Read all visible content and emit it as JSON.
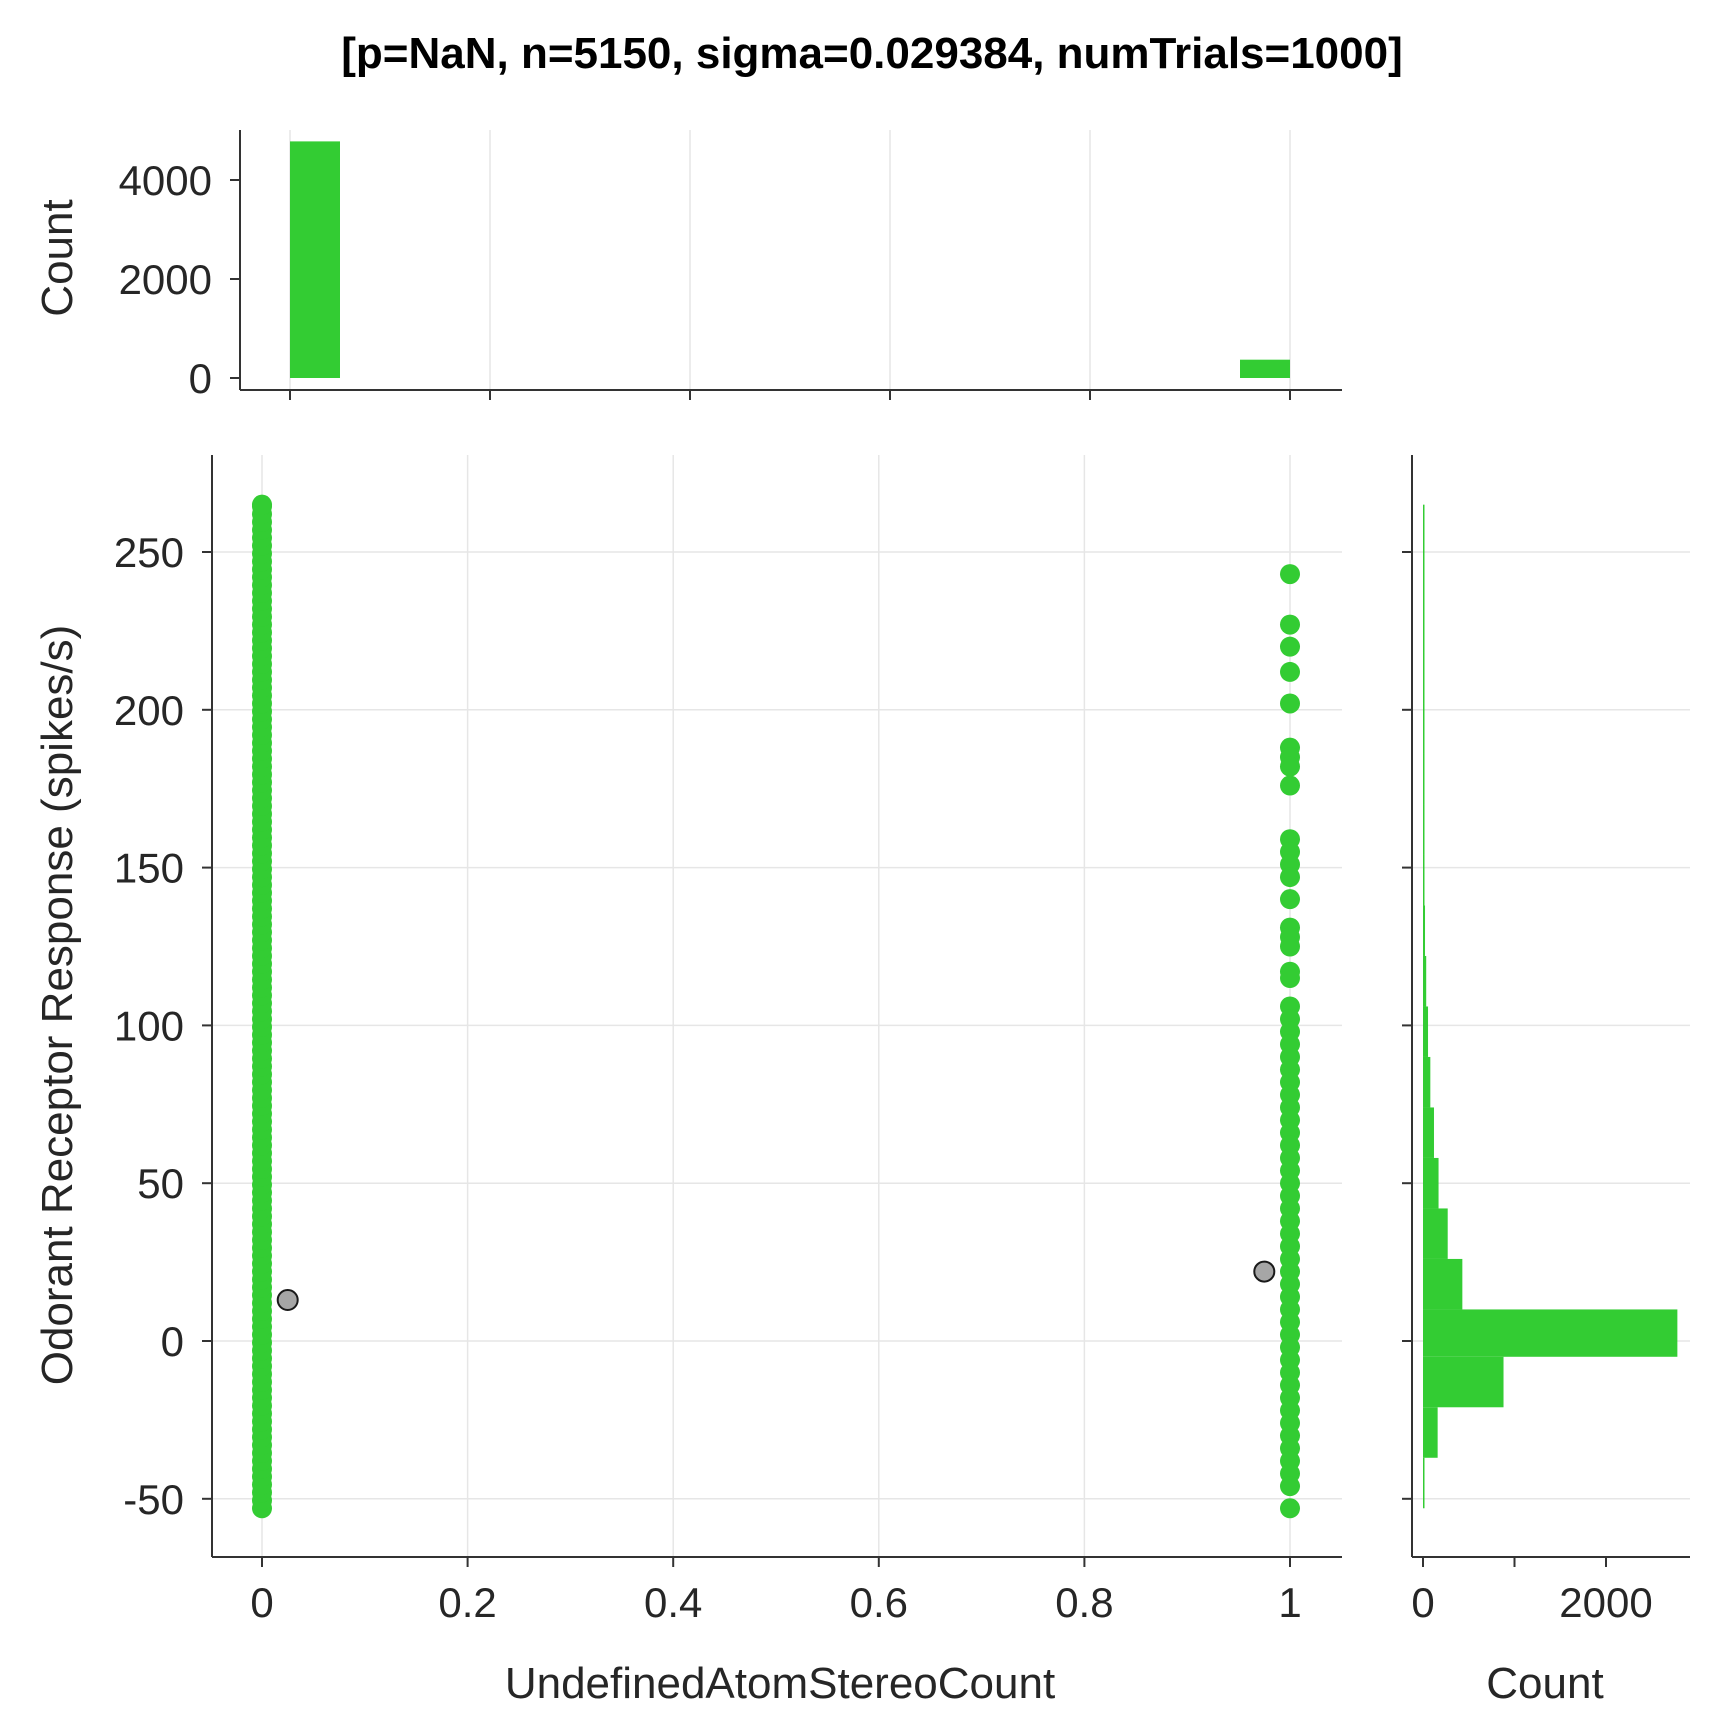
{
  "chart_data": {
    "type": "scatter",
    "title": "[p=NaN, n=5150, sigma=0.029384, numTrials=1000]",
    "colors": {
      "points": "#33cc33",
      "mean_marker": "#a6a6a6",
      "mean_marker_edge": "#1a1a1a",
      "bars": "#33cc33"
    },
    "scatter": {
      "xlabel": "UndefinedAtomStereoCount",
      "ylabel": "Odorant Receptor Response (spikes/s)",
      "xlim": [
        -0.05,
        1.05
      ],
      "ylim": [
        -68,
        280
      ],
      "xticks": [
        0,
        0.2,
        0.4,
        0.6,
        0.8,
        1
      ],
      "xtick_labels": [
        "0",
        "0.2",
        "0.4",
        "0.6",
        "0.8",
        "1"
      ],
      "yticks": [
        -50,
        0,
        50,
        100,
        150,
        200,
        250
      ],
      "ytick_labels": [
        "-50",
        "0",
        "50",
        "100",
        "150",
        "200",
        "250"
      ],
      "grid": true,
      "series": [
        {
          "x": 0,
          "y_range": [
            -53,
            265
          ],
          "note_points": [
            265,
            260,
            255,
            250,
            245,
            240,
            235,
            230,
            225,
            220,
            215,
            207,
            203,
            198,
            192,
            188,
            183,
            178
          ]
        },
        {
          "x": 1,
          "y_values": [
            243,
            227,
            220,
            212,
            202,
            188,
            185,
            182,
            176,
            159,
            155,
            151,
            147,
            140,
            131,
            128,
            125,
            117,
            115,
            106,
            102,
            98,
            94,
            90,
            86,
            82,
            78,
            74,
            70,
            66,
            62,
            58,
            54,
            50,
            46,
            42,
            38,
            34,
            30,
            26,
            22,
            18,
            14,
            10,
            6,
            2,
            -2,
            -6,
            -10,
            -14,
            -18,
            -22,
            -26,
            -30,
            -34,
            -38,
            -42,
            -46,
            -53
          ]
        }
      ],
      "means": [
        {
          "x": 0.025,
          "y": 13
        },
        {
          "x": 0.975,
          "y": 22
        }
      ]
    },
    "top_histogram": {
      "ylabel": "Count",
      "ylim": [
        0,
        5000
      ],
      "yticks": [
        0,
        2000,
        4000
      ],
      "ytick_labels": [
        "0",
        "2000",
        "4000"
      ],
      "bars": [
        {
          "x0": 0,
          "x1": 0.05,
          "count": 4780
        },
        {
          "x0": 0.95,
          "x1": 1.0,
          "count": 370
        }
      ]
    },
    "right_histogram": {
      "xlabel": "Count",
      "xlim": [
        -30,
        2900
      ],
      "xticks": [
        0,
        1000,
        2000
      ],
      "xtick_labels": [
        "0",
        "",
        "2000"
      ],
      "bars": [
        {
          "y0": -53,
          "y1": -37,
          "count": 15
        },
        {
          "y0": -37,
          "y1": -21,
          "count": 160
        },
        {
          "y0": -21,
          "y1": -5,
          "count": 880
        },
        {
          "y0": -5,
          "y1": 10,
          "count": 2780
        },
        {
          "y0": 10,
          "y1": 26,
          "count": 430
        },
        {
          "y0": 26,
          "y1": 42,
          "count": 270
        },
        {
          "y0": 42,
          "y1": 58,
          "count": 170
        },
        {
          "y0": 58,
          "y1": 74,
          "count": 120
        },
        {
          "y0": 74,
          "y1": 90,
          "count": 80
        },
        {
          "y0": 90,
          "y1": 106,
          "count": 55
        },
        {
          "y0": 106,
          "y1": 122,
          "count": 35
        },
        {
          "y0": 122,
          "y1": 138,
          "count": 22
        },
        {
          "y0": 138,
          "y1": 154,
          "count": 15
        },
        {
          "y0": 154,
          "y1": 170,
          "count": 10
        },
        {
          "y0": 170,
          "y1": 186,
          "count": 8
        },
        {
          "y0": 186,
          "y1": 202,
          "count": 5
        },
        {
          "y0": 202,
          "y1": 218,
          "count": 4
        },
        {
          "y0": 218,
          "y1": 234,
          "count": 3
        },
        {
          "y0": 234,
          "y1": 250,
          "count": 2
        },
        {
          "y0": 250,
          "y1": 265,
          "count": 2
        }
      ]
    }
  }
}
